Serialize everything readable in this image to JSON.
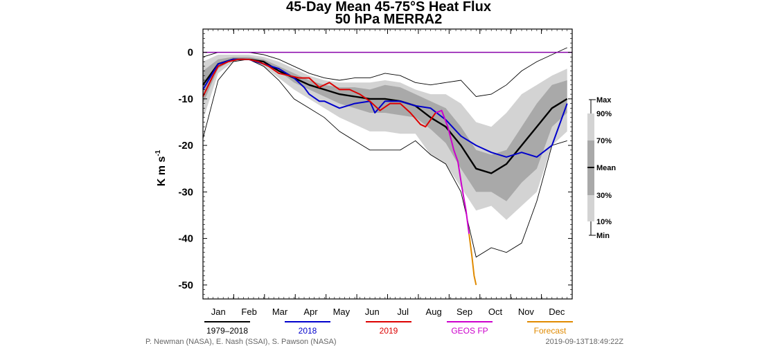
{
  "chart_data": {
    "type": "line",
    "title_line1": "45-Day Mean 45-75°S Heat Flux",
    "title_line2": "50 hPa   MERRA2",
    "ylabel_base": "K m s",
    "ylabel_exp": "-1",
    "ylim": [
      -53,
      5
    ],
    "yticks": [
      0,
      -10,
      -20,
      -30,
      -40,
      -50
    ],
    "ytick_labels": [
      "0",
      "-10",
      "-20",
      "-30",
      "-40",
      "-50"
    ],
    "months": [
      "Jan",
      "Feb",
      "Mar",
      "Apr",
      "May",
      "Jun",
      "Jul",
      "Aug",
      "Sep",
      "Oct",
      "Nov",
      "Dec"
    ],
    "band_labels": [
      "Max",
      "90%",
      "70%",
      "Mean",
      "30%",
      "10%",
      "Min"
    ],
    "colors": {
      "mean": "#000000",
      "y2018": "#0000cc",
      "y2019": "#dd0000",
      "geos": "#cc00cc",
      "forecast": "#e08a00",
      "zero_line": "#8800aa",
      "band_outer": "#d3d3d3",
      "band_mid": "#a9a9a9",
      "band_inner": "#7f7f7f"
    },
    "x": [
      0,
      15,
      30,
      45,
      60,
      75,
      90,
      105,
      120,
      135,
      150,
      165,
      180,
      195,
      210,
      225,
      240,
      255,
      270,
      285,
      300,
      315,
      330,
      345,
      360
    ],
    "min": [
      -18.5,
      -6,
      -2,
      -1.5,
      -3,
      -6,
      -10,
      -12,
      -14,
      -17,
      -19,
      -21,
      -21,
      -21,
      -19,
      -22,
      -24,
      -30,
      -44,
      -42,
      -43,
      -41,
      -32,
      -20,
      -19
    ],
    "p10": [
      -14.5,
      -4.5,
      -2,
      -1.5,
      -3,
      -5.5,
      -8,
      -10,
      -12,
      -14,
      -15.5,
      -17,
      -17,
      -17.5,
      -17.5,
      -22,
      -24,
      -29,
      -34,
      -33,
      -36,
      -33,
      -30,
      -20,
      -17
    ],
    "p30": [
      -11,
      -3.5,
      -1.5,
      -1.2,
      -2.5,
      -4,
      -6.5,
      -8,
      -9.5,
      -11,
      -12,
      -13,
      -13,
      -13.5,
      -14,
      -16.5,
      -19.5,
      -25,
      -30,
      -30,
      -32,
      -28,
      -25,
      -16,
      -13
    ],
    "mean": [
      -7,
      -2.5,
      -1.5,
      -1.5,
      -2,
      -4,
      -5.5,
      -7,
      -8,
      -9,
      -9.5,
      -10,
      -10,
      -10.5,
      -11.5,
      -14,
      -16,
      -20,
      -25,
      -26,
      -24,
      -20,
      -16,
      -12,
      -10
    ],
    "p70": [
      -4,
      -1.5,
      -1,
      -1,
      -1.5,
      -3,
      -4.5,
      -6,
      -7,
      -7.5,
      -7.5,
      -8,
      -7,
      -7.5,
      -9,
      -10.5,
      -12,
      -16,
      -21,
      -22,
      -21,
      -16,
      -11,
      -7,
      -6
    ],
    "p90": [
      -2,
      -0.5,
      -0.5,
      -0.5,
      -1,
      -2,
      -3.5,
      -5,
      -6,
      -6.5,
      -6.5,
      -6.5,
      -6,
      -6.5,
      -8,
      -9,
      -9,
      -11,
      -15,
      -16,
      -13,
      -9,
      -7,
      -5,
      -3.5
    ],
    "max": [
      -1,
      0,
      0,
      0,
      -0.5,
      -1.5,
      -3,
      -4.5,
      -5.5,
      -6,
      -5.5,
      -5.5,
      -4.5,
      -5,
      -6.5,
      -7,
      -6.5,
      -6,
      -9.5,
      -9,
      -7,
      -4,
      -2,
      -0.5,
      1
    ],
    "series": [
      {
        "name": "1979–2018",
        "x": [
          0,
          15,
          30,
          45,
          60,
          75,
          90,
          105,
          120,
          135,
          150,
          165,
          180,
          195,
          210,
          225,
          240,
          255,
          270,
          285,
          300,
          315,
          330,
          345,
          360
        ],
        "values": [
          -7,
          -2.5,
          -1.5,
          -1.5,
          -2,
          -4,
          -5.5,
          -7,
          -8,
          -9,
          -9.5,
          -10,
          -10,
          -10.5,
          -11.5,
          -14,
          -16,
          -20,
          -25,
          -26,
          -24,
          -20,
          -16,
          -12,
          -10
        ]
      },
      {
        "name": "2018",
        "x": [
          0,
          15,
          30,
          45,
          60,
          75,
          90,
          100,
          105,
          115,
          120,
          135,
          150,
          165,
          170,
          180,
          195,
          210,
          225,
          240,
          255,
          270,
          285,
          300,
          315,
          330,
          345,
          360
        ],
        "values": [
          -8,
          -2.5,
          -1.5,
          -1.5,
          -2.5,
          -3.5,
          -5.5,
          -7.5,
          -9,
          -10.5,
          -10.5,
          -12,
          -11,
          -10.5,
          -13,
          -10.5,
          -10.5,
          -11.5,
          -12,
          -14.5,
          -18,
          -20,
          -21.5,
          -22.5,
          -21.5,
          -22.5,
          -20,
          -11
        ]
      },
      {
        "name": "2019",
        "x": [
          0,
          10,
          15,
          25,
          35,
          45,
          55,
          65,
          75,
          85,
          95,
          105,
          115,
          125,
          135,
          145,
          155,
          165,
          175,
          185,
          195,
          205,
          215,
          220,
          230
        ],
        "values": [
          -9.5,
          -5,
          -3,
          -2,
          -1.5,
          -1.5,
          -2,
          -3,
          -4.5,
          -5,
          -5.5,
          -5.5,
          -7.5,
          -6.5,
          -8,
          -8,
          -9,
          -10.5,
          -12.5,
          -11,
          -11,
          -13,
          -15.5,
          -16,
          -13
        ]
      },
      {
        "name": "GEOS FP",
        "x": [
          230,
          236,
          242,
          248,
          252,
          256,
          260,
          263
        ],
        "values": [
          -13,
          -12.5,
          -16,
          -21,
          -23.5,
          -29,
          -34,
          -39
        ]
      },
      {
        "name": "Forecast",
        "x": [
          263,
          266,
          268,
          270
        ],
        "values": [
          -39,
          -44,
          -48,
          -50
        ]
      }
    ],
    "credit_left": "P. Newman (NASA), E. Nash (SSAI), S. Pawson (NASA)",
    "credit_right": "2019-09-13T18:49:22Z"
  }
}
